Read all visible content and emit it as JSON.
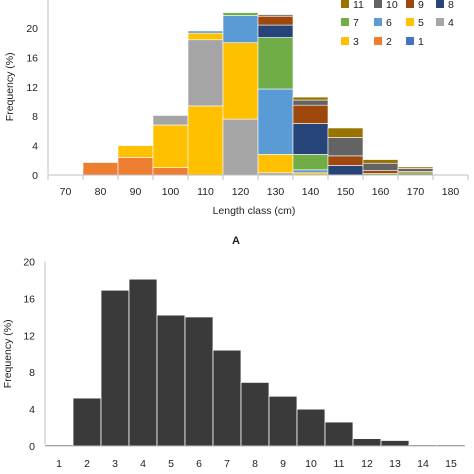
{
  "chart_data": [
    {
      "type": "bar",
      "stacked": true,
      "panel_label": "A",
      "categories": [
        "70",
        "80",
        "90",
        "100",
        "110",
        "120",
        "130",
        "140",
        "150",
        "160",
        "170",
        "180"
      ],
      "xlabel": "Length class (cm)",
      "ylabel": "Frequency (%)",
      "ylim": [
        0,
        24
      ],
      "yticks": [
        0,
        4,
        8,
        12,
        16,
        20
      ],
      "legend_placement": "top-right",
      "legend_order": [
        "11",
        "10",
        "9",
        "8",
        "7",
        "6",
        "5",
        "4",
        "3",
        "2",
        "1"
      ],
      "series": [
        {
          "name": "1",
          "color": "#4472C4",
          "values": [
            0,
            0,
            0,
            0,
            0,
            0,
            0,
            0,
            0,
            0,
            0,
            0
          ]
        },
        {
          "name": "2",
          "color": "#ED7D31",
          "values": [
            0,
            1.7,
            2.4,
            1.0,
            0,
            0,
            0,
            0,
            0,
            0,
            0,
            0
          ]
        },
        {
          "name": "3",
          "color": "#FFC000",
          "values": [
            0.1,
            0,
            1.6,
            5.8,
            9.4,
            0,
            0,
            0,
            0,
            0,
            0,
            0
          ]
        },
        {
          "name": "4",
          "color": "#A5A5A5",
          "values": [
            0,
            0,
            0,
            1.3,
            9.0,
            7.6,
            0.3,
            0,
            0,
            0,
            0,
            0
          ]
        },
        {
          "name": "5",
          "color": "#FFC000",
          "values": [
            0,
            0,
            0,
            0,
            0.9,
            10.4,
            2.5,
            0.3,
            0,
            0,
            0,
            0
          ]
        },
        {
          "name": "6",
          "color": "#5B9BD5",
          "values": [
            0,
            0,
            0,
            0,
            0.3,
            3.7,
            8.9,
            0.4,
            0,
            0,
            0,
            0
          ]
        },
        {
          "name": "7",
          "color": "#70AD47",
          "values": [
            0,
            0,
            0,
            0,
            0,
            0.4,
            7.0,
            2.1,
            0,
            0.2,
            0.3,
            0
          ]
        },
        {
          "name": "8",
          "color": "#264478",
          "values": [
            0,
            0,
            0,
            0,
            0,
            0,
            1.7,
            4.2,
            1.3,
            0,
            0,
            0
          ]
        },
        {
          "name": "9",
          "color": "#9E480E",
          "values": [
            0,
            0,
            0,
            0,
            0,
            0,
            1.2,
            2.5,
            1.3,
            0.4,
            0.2,
            0
          ]
        },
        {
          "name": "10",
          "color": "#636363",
          "values": [
            0,
            0,
            0,
            0,
            0,
            0,
            0.2,
            0.7,
            2.5,
            1.0,
            0.4,
            0
          ]
        },
        {
          "name": "11",
          "color": "#997300",
          "values": [
            0,
            0,
            0,
            0,
            0,
            0,
            0.1,
            0.4,
            1.3,
            0.5,
            0.2,
            0.1
          ]
        }
      ]
    },
    {
      "type": "bar",
      "categories": [
        "1",
        "2",
        "3",
        "4",
        "5",
        "6",
        "7",
        "8",
        "9",
        "10",
        "11",
        "12",
        "13",
        "14",
        "15"
      ],
      "values": [
        0.1,
        5.2,
        16.9,
        18.1,
        14.2,
        14.0,
        10.4,
        6.9,
        5.4,
        4.0,
        2.6,
        0.8,
        0.6,
        0.1,
        0.1
      ],
      "ylabel": "Frequency (%)",
      "ylim": [
        0,
        20
      ],
      "yticks": [
        0,
        4,
        8,
        12,
        16,
        20
      ],
      "color": "#3a3a3a"
    }
  ]
}
